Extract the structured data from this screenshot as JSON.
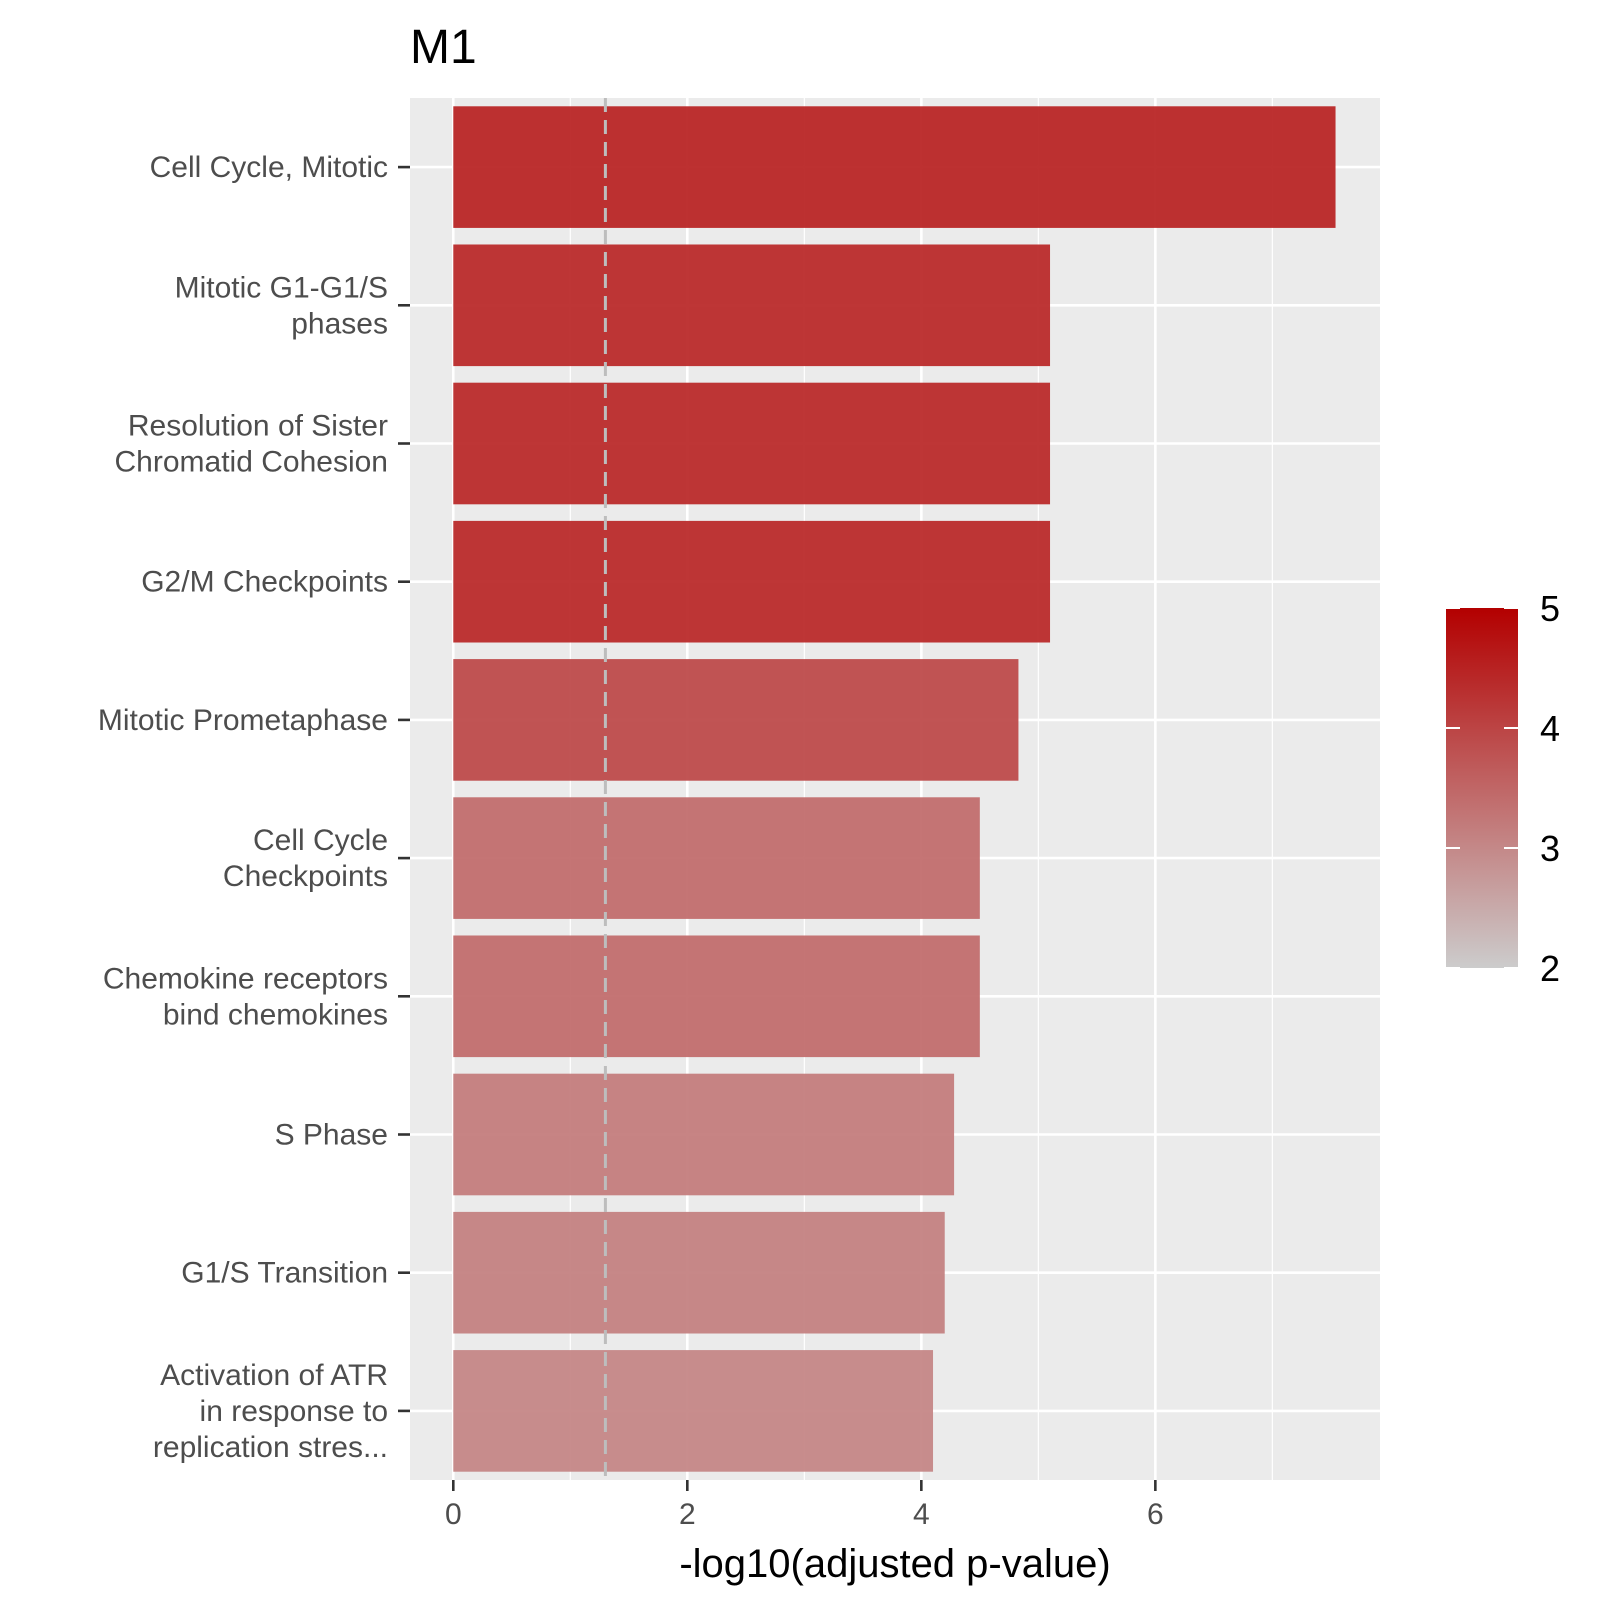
{
  "chart_data": {
    "type": "bar",
    "orientation": "horizontal",
    "title": "M1",
    "xlabel": "-log10(adjusted p-value)",
    "ylabel": "",
    "xlim": [
      -0.37,
      7.92
    ],
    "x_ticks": [
      0,
      2,
      4,
      6
    ],
    "x_tick_labels": [
      "0",
      "2",
      "4",
      "6"
    ],
    "grid": true,
    "threshold_line": {
      "x": 1.3,
      "style": "dashed",
      "color": "#bdbdbd"
    },
    "categories": [
      [
        "Cell Cycle, Mitotic"
      ],
      [
        "Mitotic G1-G1/S",
        "phases"
      ],
      [
        "Resolution of Sister",
        "Chromatid Cohesion"
      ],
      [
        "G2/M Checkpoints"
      ],
      [
        "Mitotic Prometaphase"
      ],
      [
        "Cell Cycle",
        "Checkpoints"
      ],
      [
        "Chemokine receptors",
        "bind chemokines"
      ],
      [
        "S Phase"
      ],
      [
        "G1/S Transition"
      ],
      [
        "Activation of ATR",
        "in response to",
        "replication stres..."
      ]
    ],
    "values": [
      7.54,
      5.1,
      5.1,
      5.1,
      4.83,
      4.5,
      4.5,
      4.28,
      4.2,
      4.1
    ],
    "color_values": [
      4.55,
      4.45,
      4.45,
      4.45,
      3.98,
      3.45,
      3.45,
      3.2,
      3.15,
      3.08
    ],
    "colorbar": {
      "range": [
        2,
        5
      ],
      "ticks": [
        2,
        3,
        4,
        5
      ],
      "tick_labels": [
        "2",
        "3",
        "4",
        "5"
      ],
      "low_color": "#cccccc",
      "high_color": "#b30000"
    },
    "legend_position": "right",
    "colors": {
      "panel_bg": "#ebebeb",
      "grid": "#ffffff",
      "axis_text": "#4d4d4d",
      "title_text": "#000000"
    }
  }
}
